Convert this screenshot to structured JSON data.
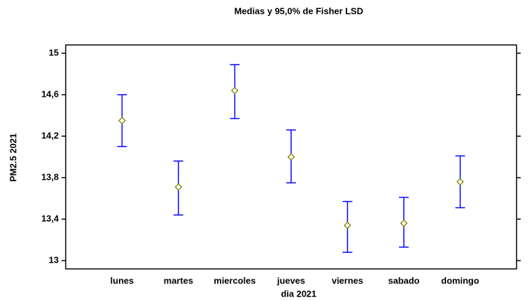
{
  "chart_data": {
    "type": "interval",
    "title": "Medias y 95,0% de Fisher LSD",
    "x_label": "dia 2021",
    "y_label": "PM2.5 2021",
    "categories": [
      "lunes",
      "martes",
      "miercoles",
      "jueves",
      "viernes",
      "sabado",
      "domingo"
    ],
    "values": [
      14.35,
      13.71,
      14.64,
      14.0,
      13.34,
      13.36,
      13.76
    ],
    "lower": [
      14.1,
      13.44,
      14.37,
      13.75,
      13.08,
      13.13,
      13.51
    ],
    "upper": [
      14.6,
      13.96,
      14.89,
      14.26,
      13.57,
      13.61,
      14.01
    ],
    "color": "#0000ff",
    "marker_color": "#808000",
    "ylim": [
      12.92,
      15.08
    ],
    "yticks": [
      13,
      {
        "value": 13.4,
        "label": "13,4"
      },
      {
        "value": 13.8,
        "label": "13,8"
      },
      {
        "value": 14.2,
        "label": "14,2"
      },
      {
        "value": 14.6,
        "label": "14,6"
      },
      15
    ]
  }
}
